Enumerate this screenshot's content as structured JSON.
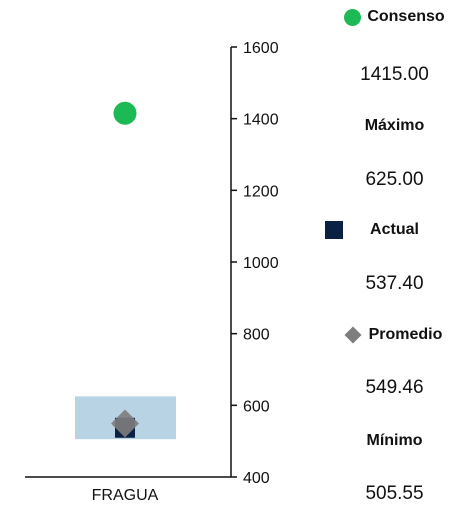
{
  "colors": {
    "consenso": "#1db954",
    "actual": "#0b2144",
    "promedio": "#7d7d7d",
    "range_box": "#b8d3e3",
    "axis": "#111111"
  },
  "legend": {
    "consenso": {
      "label": "Consenso",
      "value": "1415.00",
      "icon": "green-circle-icon"
    },
    "maximo": {
      "label": "Máximo",
      "value": "625.00"
    },
    "actual": {
      "label": "Actual",
      "value": "537.40",
      "icon": "navy-square-icon"
    },
    "promedio": {
      "label": "Promedio",
      "value": "549.46",
      "icon": "gray-diamond-icon"
    },
    "minimo": {
      "label": "Mínimo",
      "value": "505.55"
    }
  },
  "chart_data": {
    "type": "scatter",
    "categories": [
      "FRAGUA"
    ],
    "ylim": [
      400,
      1600
    ],
    "yticks": [
      400,
      600,
      800,
      1000,
      1200,
      1400,
      1600
    ],
    "series": [
      {
        "name": "Consenso",
        "values": [
          1415.0
        ],
        "marker": "circle"
      },
      {
        "name": "Actual",
        "values": [
          537.4
        ],
        "marker": "square"
      },
      {
        "name": "Promedio",
        "values": [
          549.46
        ],
        "marker": "diamond"
      }
    ],
    "range": {
      "max": 625.0,
      "min": 505.55
    },
    "grid": false,
    "legend_position": "right"
  }
}
